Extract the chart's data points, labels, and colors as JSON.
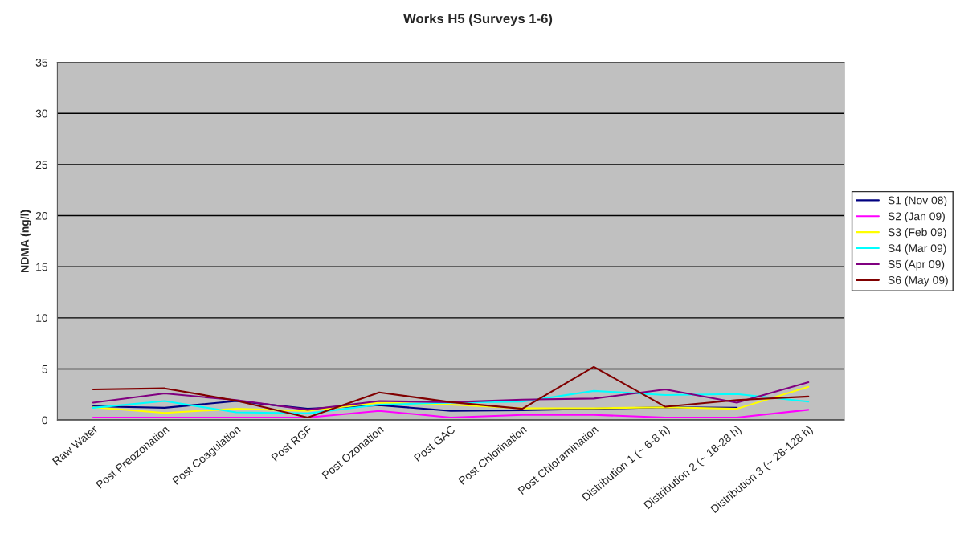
{
  "chart_data": {
    "type": "line",
    "title": "Works H5 (Surveys 1-6)",
    "ylabel": "NDMA (ng/l)",
    "categories": [
      "Raw Water",
      "Post Preozonation",
      "Post Coagulation",
      "Post RGF",
      "Post Ozonation",
      "Post GAC",
      "Post Chlorination",
      "Post Chloramination",
      "Distribution 1 (~ 6-8 h)",
      "Distribution 2 (~ 18-28 h)",
      "Distribution 3 (~ 28-128 h)"
    ],
    "series": [
      {
        "name": "S1 (Nov 08)",
        "color": "#000080",
        "values": [
          1.35,
          1.2,
          1.85,
          1.1,
          1.45,
          0.9,
          0.95,
          1.1,
          1.25,
          1.2,
          null
        ]
      },
      {
        "name": "S2 (Jan 09)",
        "color": "#ff00ff",
        "values": [
          0.25,
          0.25,
          0.25,
          0.25,
          0.9,
          0.25,
          0.5,
          0.5,
          0.25,
          0.25,
          1.0
        ]
      },
      {
        "name": "S3 (Feb 09)",
        "color": "#ffff00",
        "values": [
          1.25,
          0.7,
          1.1,
          0.9,
          1.7,
          1.5,
          1.15,
          1.15,
          1.25,
          1.1,
          3.25
        ]
      },
      {
        "name": "S4 (Mar 09)",
        "color": "#00ffff",
        "values": [
          1.2,
          1.85,
          0.75,
          0.65,
          1.5,
          1.7,
          1.8,
          2.85,
          2.45,
          2.55,
          1.8
        ]
      },
      {
        "name": "S5 (Apr 09)",
        "color": "#800080",
        "values": [
          1.7,
          2.6,
          1.95,
          1.0,
          1.85,
          1.75,
          2.0,
          2.1,
          3.0,
          1.7,
          3.7
        ]
      },
      {
        "name": "S6 (May 09)",
        "color": "#800000",
        "values": [
          3.0,
          3.1,
          1.9,
          0.25,
          2.7,
          1.75,
          1.1,
          5.2,
          1.3,
          1.95,
          2.3
        ]
      }
    ],
    "ylim": [
      0,
      35
    ],
    "yticks": [
      0,
      5,
      10,
      15,
      20,
      25,
      30,
      35
    ],
    "grid": "y",
    "legend": "right",
    "marker": "none",
    "line_style": "solid"
  }
}
